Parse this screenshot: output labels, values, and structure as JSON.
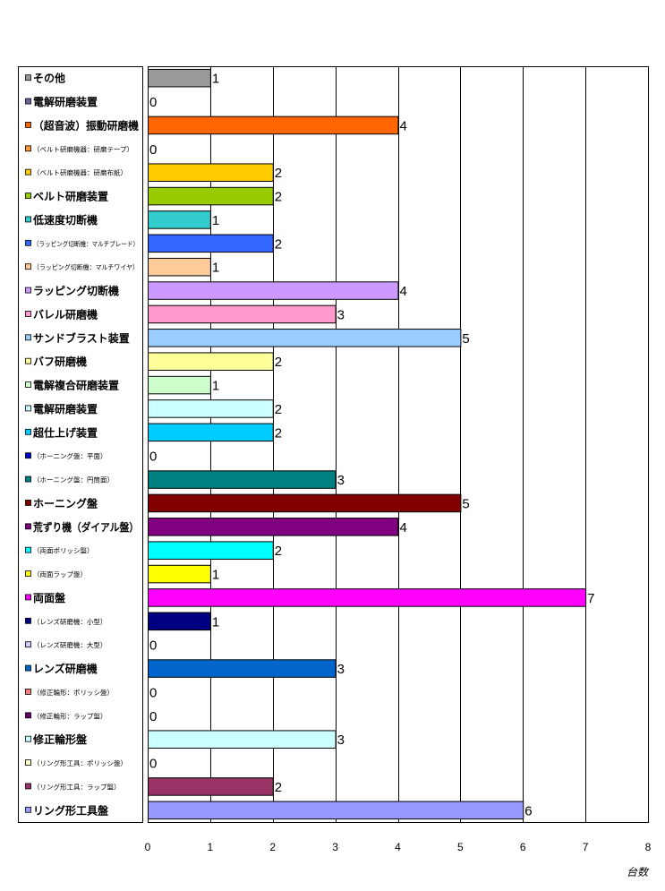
{
  "chart_data": {
    "type": "bar",
    "orientation": "horizontal",
    "xlabel": "台数",
    "xlim": [
      0,
      8
    ],
    "xticks": [
      0,
      1,
      2,
      3,
      4,
      5,
      6,
      7,
      8
    ],
    "grid": true,
    "legend": "left",
    "items": [
      {
        "label": "その他",
        "value": 1,
        "color": "#999999",
        "size": "big"
      },
      {
        "label": "電解研磨装置",
        "value": 0,
        "color": "#666699",
        "size": "big"
      },
      {
        "label": "（超音波）振動研磨機",
        "value": 4,
        "color": "#FF6600",
        "size": "big"
      },
      {
        "label": "（ベルト研磨機器：研磨テープ）",
        "value": 0,
        "color": "#FF9933",
        "size": "small"
      },
      {
        "label": "（ベルト研磨機器：研磨布紙）",
        "value": 2,
        "color": "#FFCC00",
        "size": "small"
      },
      {
        "label": "ベルト研磨装置",
        "value": 2,
        "color": "#99CC00",
        "size": "big"
      },
      {
        "label": "低速度切断機",
        "value": 1,
        "color": "#33CCCC",
        "size": "big"
      },
      {
        "label": "（ラッピング切断機：マルチブレード）",
        "value": 2,
        "color": "#3366FF",
        "size": "small"
      },
      {
        "label": "（ラッピング切断機：マルチワイヤ）",
        "value": 1,
        "color": "#FFCC99",
        "size": "small"
      },
      {
        "label": "ラッピング切断機",
        "value": 4,
        "color": "#CC99FF",
        "size": "big"
      },
      {
        "label": "バレル研磨機",
        "value": 3,
        "color": "#FF99CC",
        "size": "big"
      },
      {
        "label": "サンドブラスト装置",
        "value": 5,
        "color": "#99CCFF",
        "size": "big"
      },
      {
        "label": "バフ研磨機",
        "value": 2,
        "color": "#FFFF99",
        "size": "big"
      },
      {
        "label": "電解複合研磨装置",
        "value": 1,
        "color": "#CCFFCC",
        "size": "big"
      },
      {
        "label": "電解研磨装置",
        "value": 2,
        "color": "#CCFFFF",
        "size": "big"
      },
      {
        "label": "超仕上げ装置",
        "value": 2,
        "color": "#00CCFF",
        "size": "big"
      },
      {
        "label": "（ホーニング盤：平面）",
        "value": 0,
        "color": "#0000CC",
        "size": "small"
      },
      {
        "label": "（ホーニング盤：円筒面）",
        "value": 3,
        "color": "#008080",
        "size": "small"
      },
      {
        "label": "ホーニング盤",
        "value": 5,
        "color": "#800000",
        "size": "big"
      },
      {
        "label": "荒ずり機（ダイアル盤）",
        "value": 4,
        "color": "#800080",
        "size": "big"
      },
      {
        "label": "（両面ポリッシ盤）",
        "value": 2,
        "color": "#00FFFF",
        "size": "small"
      },
      {
        "label": "（両面ラップ盤）",
        "value": 1,
        "color": "#FFFF00",
        "size": "small"
      },
      {
        "label": "両面盤",
        "value": 7,
        "color": "#FF00FF",
        "size": "big"
      },
      {
        "label": "（レンズ研磨機：小型）",
        "value": 1,
        "color": "#000080",
        "size": "small"
      },
      {
        "label": "（レンズ研磨機：大型）",
        "value": 0,
        "color": "#CCCCFF",
        "size": "small"
      },
      {
        "label": "レンズ研磨機",
        "value": 3,
        "color": "#0066CC",
        "size": "big"
      },
      {
        "label": "（修正輪形：ポリッシ盤）",
        "value": 0,
        "color": "#FF8080",
        "size": "small"
      },
      {
        "label": "（修正輪形：ラップ盤）",
        "value": 0,
        "color": "#660066",
        "size": "small"
      },
      {
        "label": "修正輪形盤",
        "value": 3,
        "color": "#CCFFFF",
        "size": "big"
      },
      {
        "label": "（リング形工具：ポリッシ盤）",
        "value": 0,
        "color": "#FFFFCC",
        "size": "small"
      },
      {
        "label": "（リング形工具：ラップ盤）",
        "value": 2,
        "color": "#993366",
        "size": "small"
      },
      {
        "label": "リング形工具盤",
        "value": 6,
        "color": "#9999FF",
        "size": "big"
      }
    ]
  }
}
